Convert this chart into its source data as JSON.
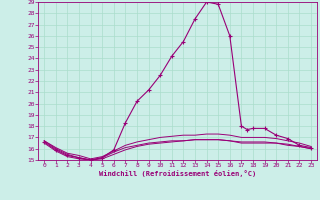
{
  "xlabel": "Windchill (Refroidissement éolien,°C)",
  "background_color": "#cceee8",
  "grid_color": "#aaddcc",
  "line_color": "#990077",
  "xlim": [
    -0.5,
    23.5
  ],
  "ylim": [
    15,
    29
  ],
  "yticks": [
    15,
    16,
    17,
    18,
    19,
    20,
    21,
    22,
    23,
    24,
    25,
    26,
    27,
    28,
    29
  ],
  "xticks": [
    0,
    1,
    2,
    3,
    4,
    5,
    6,
    7,
    8,
    9,
    10,
    11,
    12,
    13,
    14,
    15,
    16,
    17,
    18,
    19,
    20,
    21,
    22,
    23
  ],
  "main_x": [
    0,
    1,
    2,
    3,
    4,
    5,
    6,
    7,
    8,
    9,
    10,
    11,
    12,
    13,
    14,
    15,
    16,
    17,
    17.5,
    18,
    19,
    20,
    21,
    22,
    23
  ],
  "main_y": [
    16.6,
    15.9,
    15.4,
    15.2,
    15.0,
    15.2,
    15.9,
    18.3,
    20.2,
    21.2,
    22.5,
    24.2,
    25.5,
    27.5,
    29.0,
    28.8,
    26.0,
    18.0,
    17.7,
    17.8,
    17.8,
    17.2,
    16.9,
    16.3,
    16.1
  ],
  "line2_x": [
    0,
    1,
    2,
    3,
    4,
    5,
    6,
    7,
    8,
    9,
    10,
    11,
    12,
    13,
    14,
    15,
    16,
    17,
    18,
    19,
    20,
    21,
    22,
    23
  ],
  "line2_y": [
    16.5,
    15.8,
    15.3,
    15.1,
    15.0,
    15.1,
    15.5,
    15.9,
    16.2,
    16.4,
    16.5,
    16.6,
    16.7,
    16.8,
    16.8,
    16.8,
    16.7,
    16.6,
    16.6,
    16.6,
    16.5,
    16.4,
    16.2,
    16.0
  ],
  "line3_x": [
    0,
    1,
    2,
    3,
    4,
    5,
    6,
    7,
    8,
    9,
    10,
    11,
    12,
    13,
    14,
    15,
    16,
    17,
    18,
    19,
    20,
    21,
    22,
    23
  ],
  "line3_y": [
    16.7,
    16.1,
    15.6,
    15.4,
    15.1,
    15.3,
    15.8,
    16.3,
    16.6,
    16.8,
    17.0,
    17.1,
    17.2,
    17.2,
    17.3,
    17.3,
    17.2,
    17.0,
    17.0,
    17.0,
    16.9,
    16.7,
    16.5,
    16.2
  ],
  "line4_x": [
    0,
    1,
    2,
    3,
    4,
    5,
    6,
    7,
    8,
    9,
    10,
    11,
    12,
    13,
    14,
    15,
    16,
    17,
    18,
    19,
    20,
    21,
    22,
    23
  ],
  "line4_y": [
    16.7,
    16.0,
    15.5,
    15.2,
    15.0,
    15.2,
    15.7,
    16.1,
    16.3,
    16.5,
    16.6,
    16.7,
    16.7,
    16.8,
    16.8,
    16.8,
    16.7,
    16.5,
    16.5,
    16.5,
    16.5,
    16.3,
    16.2,
    16.0
  ]
}
